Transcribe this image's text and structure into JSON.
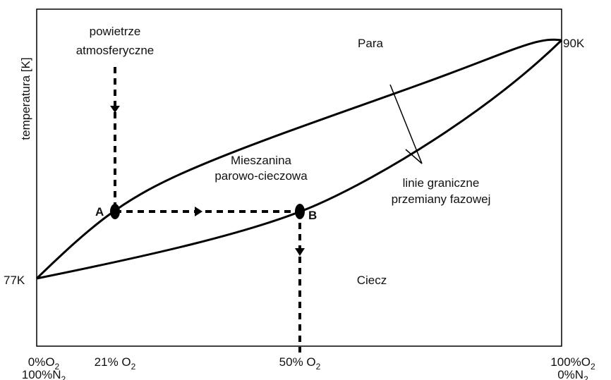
{
  "axis_label": "temperatura [K]",
  "regions": {
    "vapor": "Para",
    "mixture": [
      "Mieszanina",
      "parowo-cieczowa"
    ],
    "liquid": "Ciecz"
  },
  "inlet": [
    "powietrze",
    "atmosferyczne"
  ],
  "boundary_label": [
    "linie graniczne",
    "przemiany fazowej"
  ],
  "points": {
    "a": "A",
    "b": "B"
  },
  "temps": {
    "low": "77K",
    "high": "90K"
  },
  "x_labels": [
    {
      "main": "0%O",
      "sub": "2",
      "second": "100%N",
      "second_sub": "2"
    },
    {
      "main": "21% O",
      "sub": "2"
    },
    {
      "main": "50% O",
      "sub": "2"
    },
    {
      "main": "100%O",
      "sub": "2",
      "second": "0%N",
      "second_sub": "2"
    }
  ]
}
